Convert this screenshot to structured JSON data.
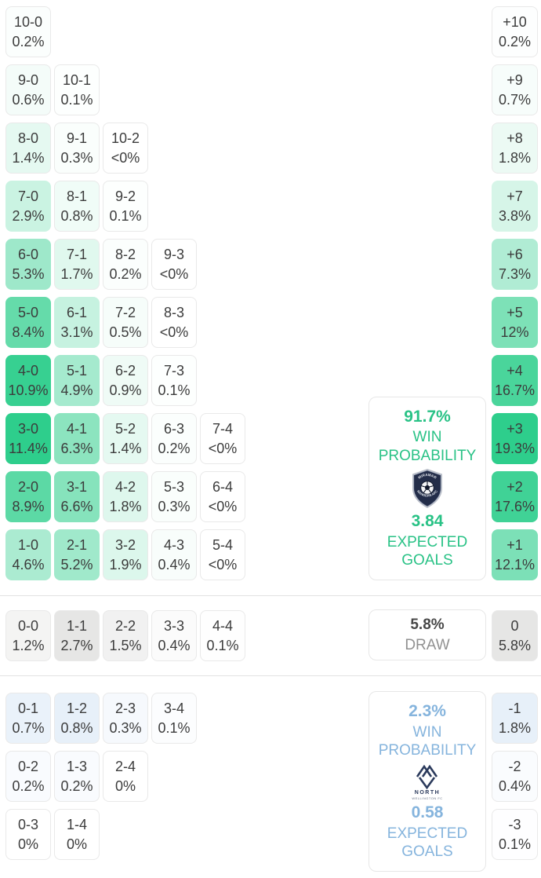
{
  "colors": {
    "home_accent": "#29c286",
    "away_accent": "#85b4dd",
    "draw_value": "#474747",
    "draw_label": "#919191",
    "cell_text": "#3c3c3c",
    "divider": "#e2e2e2",
    "panel_border": "#e7e7e7",
    "crest_navy": "#232d49",
    "crest_silver": "#b9bec9",
    "logo_navy": "#2b3a5c"
  },
  "chart_data": {
    "type": "heatmap",
    "title": "Correct score probability matrix with goal-difference distribution, win probabilities and expected goals",
    "legend_position": "right",
    "scales": {
      "home_grid": {
        "base": "#2ece8c",
        "max": 11.4,
        "border_fade": true
      },
      "diff_plus": {
        "base": "#2ece8c",
        "max": 19.3,
        "border_fade": true
      },
      "draw_row": {
        "base": "#e6e6e5",
        "max": 2.7,
        "border_fade": false
      },
      "diff_zero": {
        "base": "#e6e6e5",
        "max": 5.8,
        "border_fade": false
      },
      "away_grid": {
        "base": "#e7f0f9",
        "max": 0.8,
        "border_fade": false
      },
      "diff_minus": {
        "base": "#e7f0f9",
        "max": 1.8,
        "border_fade": false
      }
    },
    "home_score_rows": [
      [
        {
          "s": "10-0",
          "pct": "0.2%"
        }
      ],
      [
        {
          "s": "9-0",
          "pct": "0.6%"
        },
        {
          "s": "10-1",
          "pct": "0.1%"
        }
      ],
      [
        {
          "s": "8-0",
          "pct": "1.4%"
        },
        {
          "s": "9-1",
          "pct": "0.3%"
        },
        {
          "s": "10-2",
          "pct": "<0%"
        }
      ],
      [
        {
          "s": "7-0",
          "pct": "2.9%"
        },
        {
          "s": "8-1",
          "pct": "0.8%"
        },
        {
          "s": "9-2",
          "pct": "0.1%"
        }
      ],
      [
        {
          "s": "6-0",
          "pct": "5.3%"
        },
        {
          "s": "7-1",
          "pct": "1.7%"
        },
        {
          "s": "8-2",
          "pct": "0.2%"
        },
        {
          "s": "9-3",
          "pct": "<0%"
        }
      ],
      [
        {
          "s": "5-0",
          "pct": "8.4%"
        },
        {
          "s": "6-1",
          "pct": "3.1%"
        },
        {
          "s": "7-2",
          "pct": "0.5%"
        },
        {
          "s": "8-3",
          "pct": "<0%"
        }
      ],
      [
        {
          "s": "4-0",
          "pct": "10.9%"
        },
        {
          "s": "5-1",
          "pct": "4.9%"
        },
        {
          "s": "6-2",
          "pct": "0.9%"
        },
        {
          "s": "7-3",
          "pct": "0.1%"
        }
      ],
      [
        {
          "s": "3-0",
          "pct": "11.4%"
        },
        {
          "s": "4-1",
          "pct": "6.3%"
        },
        {
          "s": "5-2",
          "pct": "1.4%"
        },
        {
          "s": "6-3",
          "pct": "0.2%"
        },
        {
          "s": "7-4",
          "pct": "<0%"
        }
      ],
      [
        {
          "s": "2-0",
          "pct": "8.9%"
        },
        {
          "s": "3-1",
          "pct": "6.6%"
        },
        {
          "s": "4-2",
          "pct": "1.8%"
        },
        {
          "s": "5-3",
          "pct": "0.3%"
        },
        {
          "s": "6-4",
          "pct": "<0%"
        }
      ],
      [
        {
          "s": "1-0",
          "pct": "4.6%"
        },
        {
          "s": "2-1",
          "pct": "5.2%"
        },
        {
          "s": "3-2",
          "pct": "1.9%"
        },
        {
          "s": "4-3",
          "pct": "0.4%"
        },
        {
          "s": "5-4",
          "pct": "<0%"
        }
      ]
    ],
    "draw_score_row": [
      {
        "s": "0-0",
        "pct": "1.2%"
      },
      {
        "s": "1-1",
        "pct": "2.7%"
      },
      {
        "s": "2-2",
        "pct": "1.5%"
      },
      {
        "s": "3-3",
        "pct": "0.4%"
      },
      {
        "s": "4-4",
        "pct": "0.1%"
      }
    ],
    "away_score_rows": [
      [
        {
          "s": "0-1",
          "pct": "0.7%"
        },
        {
          "s": "1-2",
          "pct": "0.8%"
        },
        {
          "s": "2-3",
          "pct": "0.3%"
        },
        {
          "s": "3-4",
          "pct": "0.1%"
        }
      ],
      [
        {
          "s": "0-2",
          "pct": "0.2%"
        },
        {
          "s": "1-3",
          "pct": "0.2%"
        },
        {
          "s": "2-4",
          "pct": "0%"
        }
      ],
      [
        {
          "s": "0-3",
          "pct": "0%"
        },
        {
          "s": "1-4",
          "pct": "0%"
        }
      ]
    ],
    "goal_diff_plus": [
      {
        "d": "+10",
        "pct": "0.2%"
      },
      {
        "d": "+9",
        "pct": "0.7%"
      },
      {
        "d": "+8",
        "pct": "1.8%"
      },
      {
        "d": "+7",
        "pct": "3.8%"
      },
      {
        "d": "+6",
        "pct": "7.3%"
      },
      {
        "d": "+5",
        "pct": "12%"
      },
      {
        "d": "+4",
        "pct": "16.7%"
      },
      {
        "d": "+3",
        "pct": "19.3%"
      },
      {
        "d": "+2",
        "pct": "17.6%"
      },
      {
        "d": "+1",
        "pct": "12.1%"
      }
    ],
    "goal_diff_zero": {
      "d": "0",
      "pct": "5.8%"
    },
    "goal_diff_minus": [
      {
        "d": "-1",
        "pct": "1.8%"
      },
      {
        "d": "-2",
        "pct": "0.4%"
      },
      {
        "d": "-3",
        "pct": "0.1%"
      }
    ]
  },
  "home_panel": {
    "win_pct": "91.7%",
    "win_label": "WIN PROBABILITY",
    "xg": "3.84",
    "xg_label": "EXPECTED GOALS",
    "crest_top_text": "MIRAMAR",
    "crest_bottom_text": "RANGERS AFC"
  },
  "draw_panel": {
    "pct": "5.8%",
    "label": "DRAW"
  },
  "away_panel": {
    "win_pct": "2.3%",
    "win_label": "WIN PROBABILITY",
    "xg": "0.58",
    "xg_label": "EXPECTED GOALS",
    "logo_text": "NORTH",
    "logo_subtext": "WELLINGTON FC"
  }
}
